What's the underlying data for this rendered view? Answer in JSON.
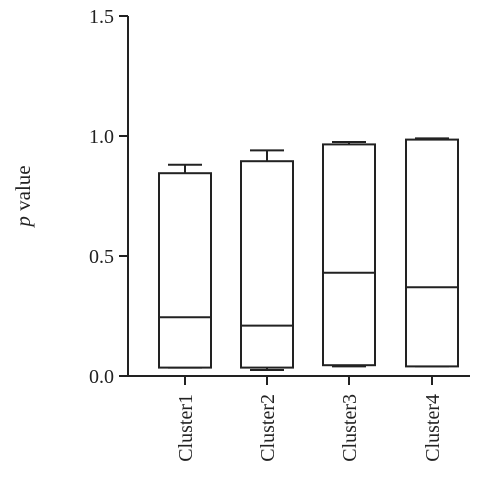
{
  "chart_data": {
    "type": "box",
    "title": "",
    "xlabel": "",
    "ylabel": {
      "italic_part": "p",
      "rest": " value"
    },
    "ylim": [
      0,
      1.5
    ],
    "yticks": [
      "0.0",
      "0.5",
      "1.0",
      "1.5"
    ],
    "grid": false,
    "legend": "none",
    "categories": [
      "Cluster1",
      "Cluster2",
      "Cluster3",
      "Cluster4"
    ],
    "boxes": [
      {
        "category": "Cluster1",
        "whisker_low": 0.035,
        "q1": 0.035,
        "median": 0.245,
        "q3": 0.845,
        "whisker_high": 0.88
      },
      {
        "category": "Cluster2",
        "whisker_low": 0.025,
        "q1": 0.035,
        "median": 0.21,
        "q3": 0.895,
        "whisker_high": 0.94
      },
      {
        "category": "Cluster3",
        "whisker_low": 0.04,
        "q1": 0.045,
        "median": 0.43,
        "q3": 0.965,
        "whisker_high": 0.975
      },
      {
        "category": "Cluster4",
        "whisker_low": 0.04,
        "q1": 0.04,
        "median": 0.37,
        "q3": 0.985,
        "whisker_high": 0.99
      }
    ],
    "colors": {
      "stroke": "#222222",
      "fill": "#ffffff"
    }
  }
}
